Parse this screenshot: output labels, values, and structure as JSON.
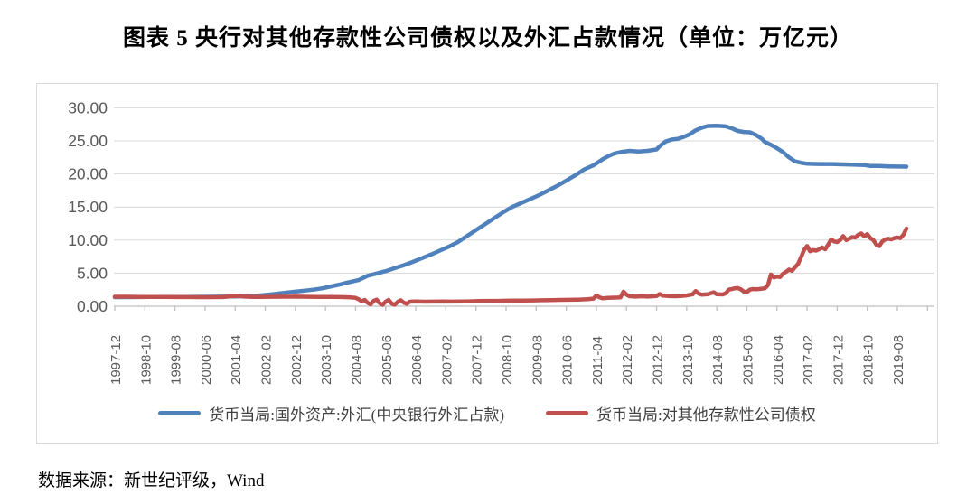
{
  "title": "图表 5  央行对其他存款性公司债权以及外汇占款情况（单位：万亿元）",
  "source_note": "数据来源：新世纪评级，Wind",
  "colors": {
    "series_fx_blue": "#4F81BD",
    "series_claims_red": "#C0504D",
    "gridline": "#D9D9D9",
    "axis": "#BFBFBF",
    "tick_label": "#595959",
    "frame_border": "#D9D9D9"
  },
  "chart_data": {
    "type": "line",
    "unit": "万亿元",
    "grid": "horizontal",
    "legend_position": "bottom",
    "ylim": [
      0,
      30
    ],
    "y_ticks": [
      0,
      5,
      10,
      15,
      20,
      25,
      30
    ],
    "y_tick_labels": [
      "0.00",
      "5.00",
      "10.00",
      "15.00",
      "20.00",
      "25.00",
      "30.00"
    ],
    "x_start_month": "1997-12",
    "x_tick_step_months": 10,
    "x_tick_labels": [
      "1997-12",
      "1998-10",
      "1999-08",
      "2000-06",
      "2001-04",
      "2002-02",
      "2002-12",
      "2003-10",
      "2004-08",
      "2005-06",
      "2006-04",
      "2007-02",
      "2007-12",
      "2008-10",
      "2009-08",
      "2010-06",
      "2011-04",
      "2012-02",
      "2012-12",
      "2013-10",
      "2014-08",
      "2015-06",
      "2016-04",
      "2017-02",
      "2017-12",
      "2018-10",
      "2019-08"
    ],
    "x_month_range": [
      0,
      263
    ],
    "series": [
      {
        "id": "fx",
        "name": "货币当局:国外资产:外汇(中央银行外汇占款)",
        "color": "#4F81BD",
        "points": [
          [
            0,
            1.36
          ],
          [
            4,
            1.37
          ],
          [
            8,
            1.38
          ],
          [
            12,
            1.4
          ],
          [
            16,
            1.4
          ],
          [
            20,
            1.41
          ],
          [
            24,
            1.41
          ],
          [
            28,
            1.42
          ],
          [
            32,
            1.43
          ],
          [
            36,
            1.45
          ],
          [
            40,
            1.47
          ],
          [
            44,
            1.52
          ],
          [
            48,
            1.62
          ],
          [
            51,
            1.75
          ],
          [
            54,
            1.9
          ],
          [
            57,
            2.05
          ],
          [
            60,
            2.2
          ],
          [
            63,
            2.35
          ],
          [
            66,
            2.5
          ],
          [
            69,
            2.7
          ],
          [
            72,
            3.0
          ],
          [
            75,
            3.3
          ],
          [
            78,
            3.65
          ],
          [
            81,
            3.95
          ],
          [
            84,
            4.6
          ],
          [
            87,
            4.95
          ],
          [
            90,
            5.3
          ],
          [
            93,
            5.75
          ],
          [
            96,
            6.2
          ],
          [
            99,
            6.7
          ],
          [
            102,
            7.25
          ],
          [
            105,
            7.8
          ],
          [
            108,
            8.4
          ],
          [
            111,
            9.0
          ],
          [
            114,
            9.7
          ],
          [
            117,
            10.6
          ],
          [
            120,
            11.5
          ],
          [
            123,
            12.4
          ],
          [
            126,
            13.3
          ],
          [
            129,
            14.2
          ],
          [
            132,
            15.0
          ],
          [
            135,
            15.6
          ],
          [
            138,
            16.2
          ],
          [
            141,
            16.8
          ],
          [
            144,
            17.5
          ],
          [
            147,
            18.2
          ],
          [
            150,
            19.0
          ],
          [
            153,
            19.8
          ],
          [
            156,
            20.7
          ],
          [
            159,
            21.3
          ],
          [
            162,
            22.2
          ],
          [
            164,
            22.7
          ],
          [
            166,
            23.1
          ],
          [
            168,
            23.3
          ],
          [
            171,
            23.5
          ],
          [
            174,
            23.4
          ],
          [
            177,
            23.5
          ],
          [
            180,
            23.7
          ],
          [
            181,
            24.2
          ],
          [
            183,
            24.9
          ],
          [
            185,
            25.2
          ],
          [
            187,
            25.3
          ],
          [
            189,
            25.6
          ],
          [
            191,
            26.0
          ],
          [
            193,
            26.6
          ],
          [
            195,
            27.0
          ],
          [
            197,
            27.25
          ],
          [
            200,
            27.3
          ],
          [
            203,
            27.2
          ],
          [
            205,
            26.9
          ],
          [
            207,
            26.5
          ],
          [
            209,
            26.35
          ],
          [
            211,
            26.3
          ],
          [
            213,
            25.9
          ],
          [
            215,
            25.3
          ],
          [
            216,
            24.85
          ],
          [
            218,
            24.4
          ],
          [
            220,
            23.9
          ],
          [
            222,
            23.3
          ],
          [
            224,
            22.5
          ],
          [
            226,
            21.9
          ],
          [
            228,
            21.7
          ],
          [
            230,
            21.55
          ],
          [
            234,
            21.5
          ],
          [
            238,
            21.5
          ],
          [
            242,
            21.45
          ],
          [
            246,
            21.4
          ],
          [
            249,
            21.35
          ],
          [
            251,
            21.2
          ],
          [
            254,
            21.2
          ],
          [
            257,
            21.15
          ],
          [
            260,
            21.12
          ],
          [
            263,
            21.1
          ]
        ]
      },
      {
        "id": "claims",
        "name": "货币当局:对其他存款性公司债权",
        "color": "#C0504D",
        "points": [
          [
            0,
            1.44
          ],
          [
            4,
            1.43
          ],
          [
            8,
            1.41
          ],
          [
            12,
            1.4
          ],
          [
            16,
            1.39
          ],
          [
            20,
            1.38
          ],
          [
            24,
            1.38
          ],
          [
            28,
            1.37
          ],
          [
            32,
            1.36
          ],
          [
            36,
            1.38
          ],
          [
            39,
            1.5
          ],
          [
            41,
            1.55
          ],
          [
            43,
            1.45
          ],
          [
            46,
            1.4
          ],
          [
            48,
            1.4
          ],
          [
            52,
            1.42
          ],
          [
            56,
            1.43
          ],
          [
            60,
            1.45
          ],
          [
            64,
            1.42
          ],
          [
            68,
            1.4
          ],
          [
            72,
            1.4
          ],
          [
            75,
            1.38
          ],
          [
            78,
            1.35
          ],
          [
            80,
            1.25
          ],
          [
            81,
            1.05
          ],
          [
            82,
            0.75
          ],
          [
            83,
            0.95
          ],
          [
            84,
            0.5
          ],
          [
            85,
            0.28
          ],
          [
            86,
            0.8
          ],
          [
            87,
            1.0
          ],
          [
            88,
            0.45
          ],
          [
            89,
            0.2
          ],
          [
            90,
            0.7
          ],
          [
            91,
            0.95
          ],
          [
            92,
            0.4
          ],
          [
            93,
            0.22
          ],
          [
            94,
            0.65
          ],
          [
            95,
            0.9
          ],
          [
            96,
            0.55
          ],
          [
            97,
            0.35
          ],
          [
            98,
            0.68
          ],
          [
            100,
            0.72
          ],
          [
            103,
            0.68
          ],
          [
            106,
            0.7
          ],
          [
            109,
            0.72
          ],
          [
            112,
            0.7
          ],
          [
            115,
            0.71
          ],
          [
            118,
            0.74
          ],
          [
            121,
            0.78
          ],
          [
            124,
            0.8
          ],
          [
            127,
            0.8
          ],
          [
            130,
            0.83
          ],
          [
            133,
            0.85
          ],
          [
            136,
            0.86
          ],
          [
            139,
            0.87
          ],
          [
            142,
            0.9
          ],
          [
            145,
            0.92
          ],
          [
            148,
            0.95
          ],
          [
            151,
            0.97
          ],
          [
            154,
            1.0
          ],
          [
            157,
            1.05
          ],
          [
            159,
            1.15
          ],
          [
            160,
            1.6
          ],
          [
            161,
            1.35
          ],
          [
            162,
            1.2
          ],
          [
            164,
            1.25
          ],
          [
            166,
            1.3
          ],
          [
            168,
            1.32
          ],
          [
            169,
            2.2
          ],
          [
            170,
            1.75
          ],
          [
            171,
            1.5
          ],
          [
            173,
            1.45
          ],
          [
            175,
            1.5
          ],
          [
            177,
            1.45
          ],
          [
            179,
            1.5
          ],
          [
            180,
            1.55
          ],
          [
            181,
            1.85
          ],
          [
            182,
            1.6
          ],
          [
            184,
            1.55
          ],
          [
            186,
            1.5
          ],
          [
            188,
            1.55
          ],
          [
            190,
            1.62
          ],
          [
            192,
            1.8
          ],
          [
            193,
            2.3
          ],
          [
            194,
            1.9
          ],
          [
            195,
            1.75
          ],
          [
            197,
            1.8
          ],
          [
            199,
            2.1
          ],
          [
            200,
            1.8
          ],
          [
            202,
            1.78
          ],
          [
            203,
            1.95
          ],
          [
            204,
            2.5
          ],
          [
            205,
            2.6
          ],
          [
            206,
            2.7
          ],
          [
            207,
            2.75
          ],
          [
            208,
            2.55
          ],
          [
            209,
            2.2
          ],
          [
            210,
            2.15
          ],
          [
            211,
            2.5
          ],
          [
            212,
            2.6
          ],
          [
            213,
            2.55
          ],
          [
            214,
            2.6
          ],
          [
            215,
            2.65
          ],
          [
            216,
            2.7
          ],
          [
            217,
            3.2
          ],
          [
            218,
            4.8
          ],
          [
            219,
            4.35
          ],
          [
            220,
            4.5
          ],
          [
            221,
            4.4
          ],
          [
            222,
            4.9
          ],
          [
            223,
            5.2
          ],
          [
            224,
            5.55
          ],
          [
            225,
            5.35
          ],
          [
            226,
            5.9
          ],
          [
            227,
            6.4
          ],
          [
            228,
            7.4
          ],
          [
            229,
            8.5
          ],
          [
            230,
            9.1
          ],
          [
            231,
            8.3
          ],
          [
            232,
            8.5
          ],
          [
            233,
            8.4
          ],
          [
            234,
            8.6
          ],
          [
            235,
            8.9
          ],
          [
            236,
            8.6
          ],
          [
            237,
            9.3
          ],
          [
            238,
            10.1
          ],
          [
            239,
            9.8
          ],
          [
            240,
            9.7
          ],
          [
            241,
            10.0
          ],
          [
            242,
            10.6
          ],
          [
            243,
            10.0
          ],
          [
            244,
            10.2
          ],
          [
            245,
            10.45
          ],
          [
            246,
            10.4
          ],
          [
            247,
            10.8
          ],
          [
            248,
            11.0
          ],
          [
            249,
            10.55
          ],
          [
            250,
            10.9
          ],
          [
            251,
            10.3
          ],
          [
            252,
            10.0
          ],
          [
            253,
            9.3
          ],
          [
            254,
            9.1
          ],
          [
            255,
            9.8
          ],
          [
            256,
            10.1
          ],
          [
            257,
            10.2
          ],
          [
            258,
            10.1
          ],
          [
            259,
            10.3
          ],
          [
            260,
            10.4
          ],
          [
            261,
            10.3
          ],
          [
            262,
            10.8
          ],
          [
            263,
            11.75
          ]
        ]
      }
    ]
  }
}
